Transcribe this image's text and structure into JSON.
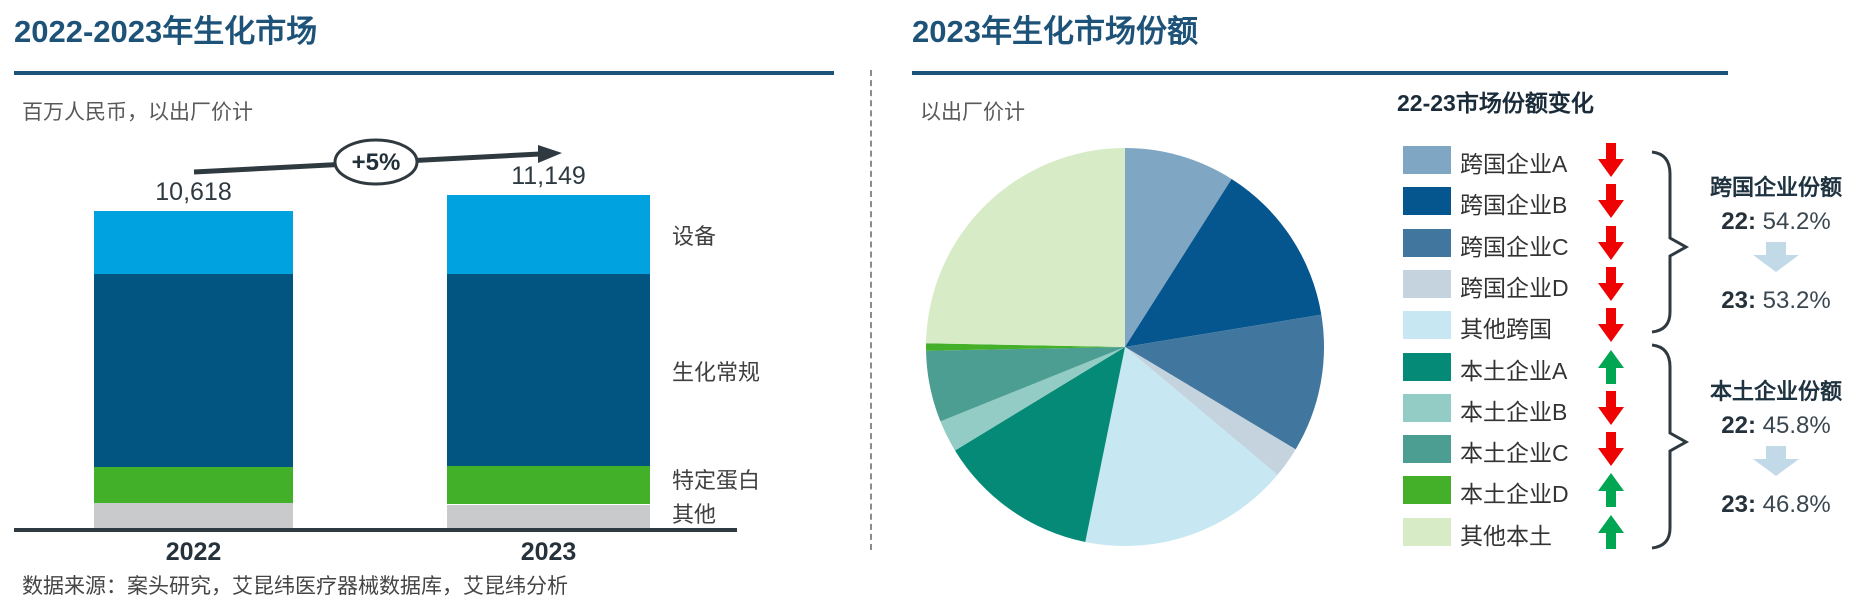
{
  "colors": {
    "title": "#1E5379",
    "axis": "#2E3A42",
    "arrow_red": "#EE0202",
    "arrow_green": "#00A651",
    "share_change_arrow": "#C2D9E8",
    "divider": "#8C8C8C"
  },
  "source_text": "数据来源：案头研究，艾昆纬医疗器械数据库，艾昆纬分析",
  "chart_data": [
    {
      "type": "bar",
      "stacked": true,
      "title": "2022-2023年生化市场",
      "subtitle": "百万人民币，以出厂价计",
      "growth_annotation": "+5%",
      "categories": [
        "2022",
        "2023"
      ],
      "totals": [
        10618,
        11149
      ],
      "total_labels": [
        "10,618",
        "11,149"
      ],
      "series": [
        {
          "name": "其他",
          "color": "#C8CACC",
          "values": [
            822,
            787
          ]
        },
        {
          "name": "特定蛋白",
          "color": "#43B02A",
          "values": [
            1208,
            1305
          ]
        },
        {
          "name": "生化常规",
          "color": "#025581",
          "values": [
            6475,
            6426
          ]
        },
        {
          "name": "设备",
          "color": "#00A3DF",
          "values": [
            2113,
            2631
          ]
        }
      ],
      "ylabel": "百万人民币",
      "grid": false
    },
    {
      "type": "pie",
      "title": "2023年生化市场份额",
      "subtitle": "以出厂价计",
      "legend_title": "22-23市场份额变化",
      "slices": [
        {
          "label": "跨国企业A",
          "value": 9.0,
          "color": "#7FA6C3",
          "change": "down"
        },
        {
          "label": "跨国企业B",
          "value": 13.4,
          "color": "#05568F",
          "change": "down"
        },
        {
          "label": "跨国企业C",
          "value": 11.2,
          "color": "#41779F",
          "change": "down"
        },
        {
          "label": "跨国企业D",
          "value": 2.5,
          "color": "#C4D3DE",
          "change": "down"
        },
        {
          "label": "其他跨国",
          "value": 17.1,
          "color": "#C7E7F2",
          "change": "down"
        },
        {
          "label": "本土企业A",
          "value": 13.1,
          "color": "#048A76",
          "change": "up"
        },
        {
          "label": "本土企业B",
          "value": 2.6,
          "color": "#93CCC4",
          "change": "down"
        },
        {
          "label": "本土企业C",
          "value": 5.8,
          "color": "#4D9E92",
          "change": "down"
        },
        {
          "label": "本土企业D",
          "value": 0.6,
          "color": "#44B02A",
          "change": "up"
        },
        {
          "label": "其他本土",
          "value": 24.7,
          "color": "#D6EBC6",
          "change": "up"
        }
      ],
      "groups": [
        {
          "title": "跨国企业份额",
          "from_label": "22:",
          "from": "54.2%",
          "to_label": "23:",
          "to": "53.2%"
        },
        {
          "title": "本土企业份额",
          "from_label": "22:",
          "from": "45.8%",
          "to_label": "23:",
          "to": "46.8%"
        }
      ],
      "legend_position": "right"
    }
  ]
}
